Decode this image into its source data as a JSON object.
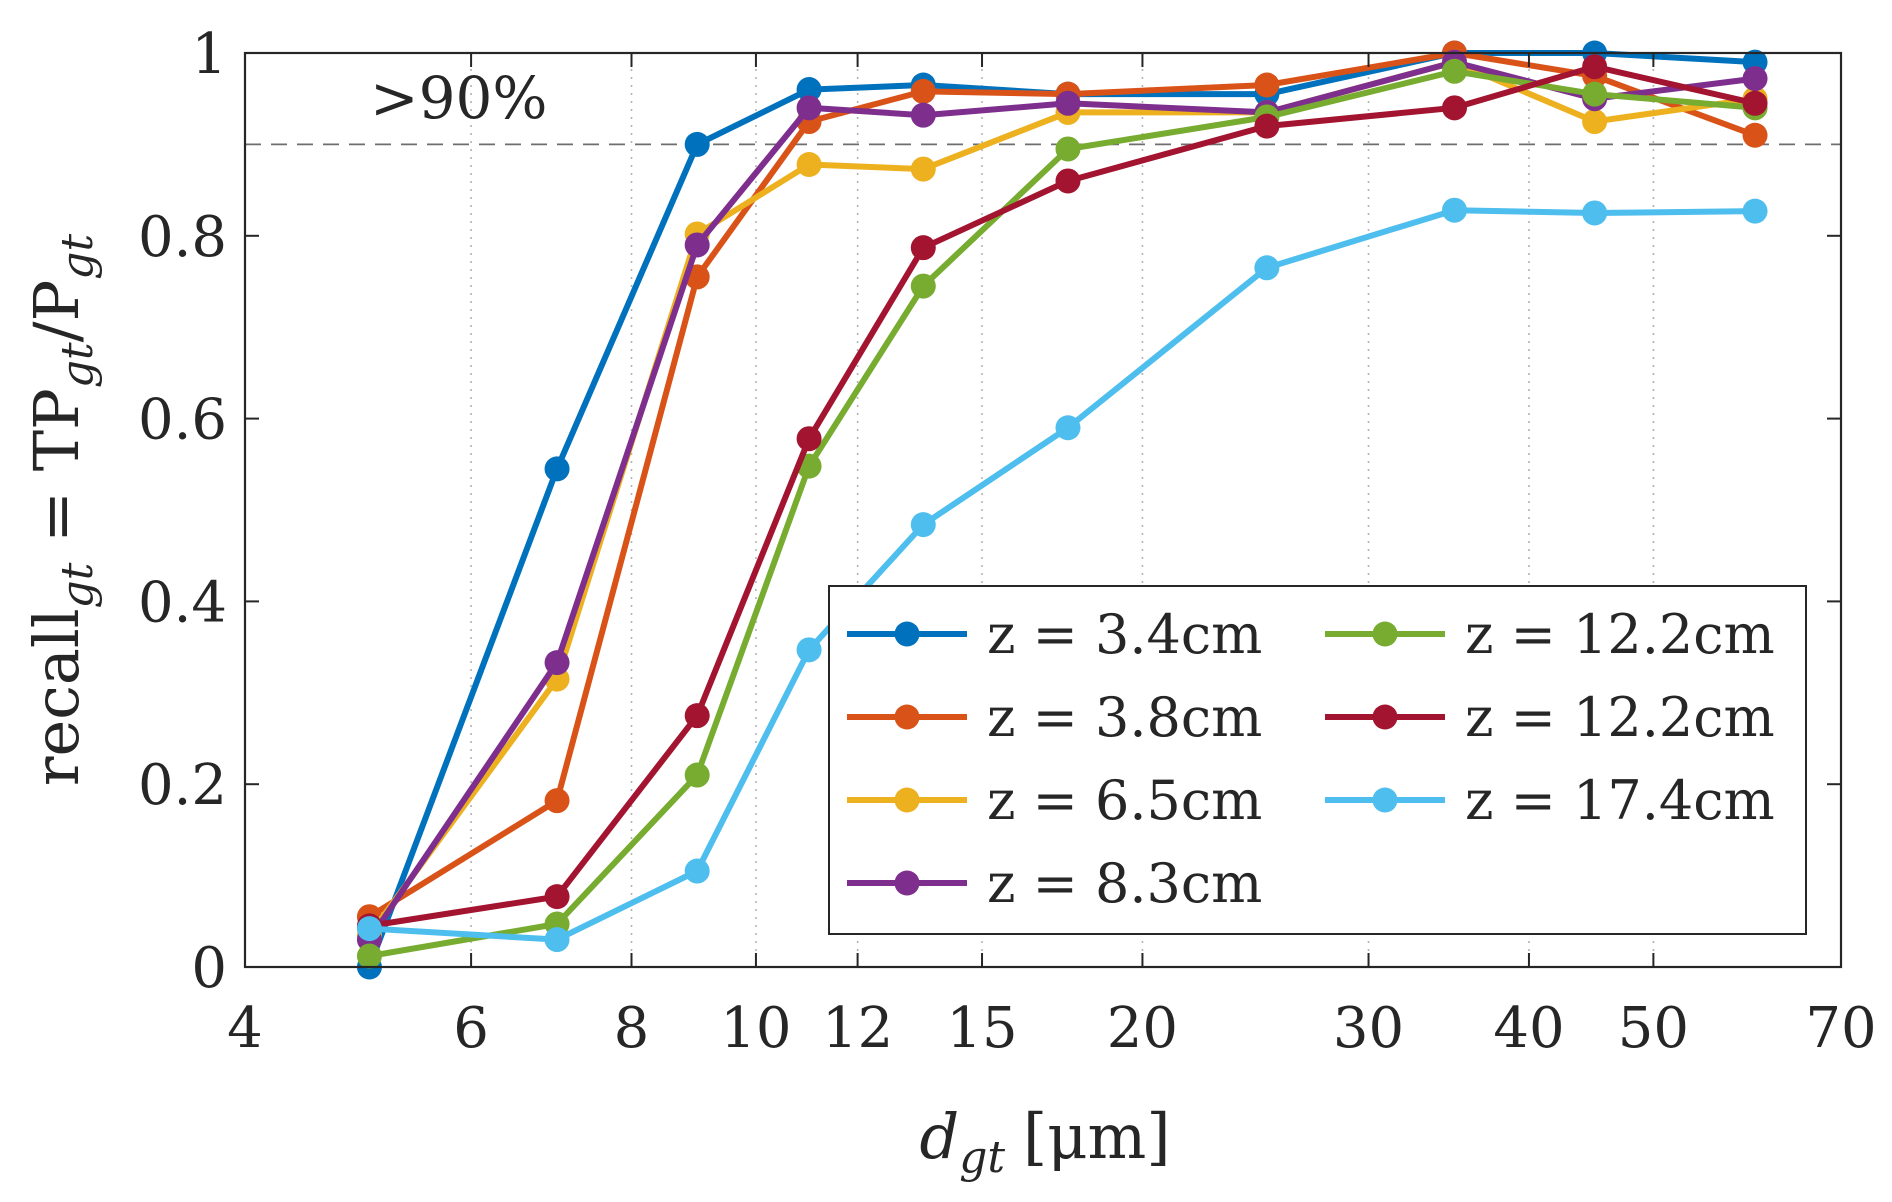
{
  "chart_data": {
    "type": "line",
    "xscale": "log",
    "xlim": [
      4,
      70
    ],
    "ylim": [
      0,
      1
    ],
    "xticks": [
      4,
      6,
      8,
      10,
      12,
      15,
      20,
      30,
      40,
      50,
      70
    ],
    "yticks": [
      0,
      0.2,
      0.4,
      0.6,
      0.8,
      1
    ],
    "xtick_labels": [
      "4",
      "6",
      "8",
      "10",
      "12",
      "15",
      "20",
      "30",
      "40",
      "50",
      "70"
    ],
    "ytick_labels": [
      "0",
      "0.2",
      "0.4",
      "0.6",
      "0.8",
      "1"
    ],
    "xlabel": {
      "main": "d",
      "sub": "gt",
      "unit": "[μm]"
    },
    "ylabel": {
      "p1": "recall",
      "s1": "gt",
      "p2": " = TP",
      "s2": "gt",
      "p3": "/P",
      "s3": "gt"
    },
    "grid": "x-only dotted",
    "reference_line": {
      "y": 0.9,
      "style": "dashed",
      "label": ">90%"
    },
    "legend_position": "bottom-right, two columns",
    "x": [
      5,
      7,
      9,
      11,
      13.5,
      17.5,
      25,
      35,
      45,
      60
    ],
    "series": [
      {
        "name": "z = 3.4cm",
        "color": "#0072BD",
        "values": [
          0.0,
          0.545,
          0.9,
          0.96,
          0.965,
          0.955,
          0.955,
          1.0,
          1.0,
          0.99
        ]
      },
      {
        "name": "z = 3.8cm",
        "color": "#D95319",
        "values": [
          0.055,
          0.182,
          0.755,
          0.925,
          0.958,
          0.955,
          0.965,
          1.0,
          0.975,
          0.91
        ]
      },
      {
        "name": "z = 6.5cm",
        "color": "#EDB120",
        "values": [
          0.035,
          0.315,
          0.802,
          0.878,
          0.873,
          0.935,
          0.935,
          0.99,
          0.925,
          0.95
        ]
      },
      {
        "name": "z = 8.3cm",
        "color": "#7E2F8E",
        "values": [
          0.03,
          0.333,
          0.79,
          0.94,
          0.932,
          0.945,
          0.935,
          0.99,
          0.95,
          0.972
        ]
      },
      {
        "name": "z = 12.2cm",
        "color": "#77AC30",
        "values": [
          0.012,
          0.047,
          0.21,
          0.548,
          0.745,
          0.895,
          0.93,
          0.98,
          0.955,
          0.94
        ]
      },
      {
        "name": "z = 12.2cm",
        "color": "#A2142F",
        "values": [
          0.045,
          0.077,
          0.275,
          0.578,
          0.787,
          0.86,
          0.92,
          0.94,
          0.985,
          0.945
        ]
      },
      {
        "name": "z = 17.4cm",
        "color": "#4DBEEE",
        "values": [
          0.042,
          0.03,
          0.105,
          0.347,
          0.484,
          0.59,
          0.765,
          0.828,
          0.825,
          0.827
        ]
      }
    ]
  }
}
